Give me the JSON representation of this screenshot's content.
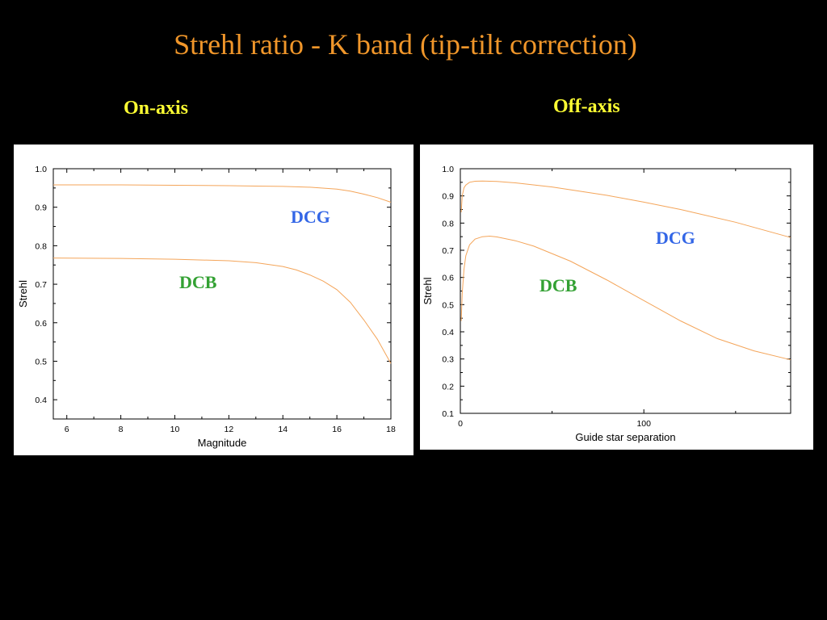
{
  "slide": {
    "title": "Strehl ratio - K band (tip-tilt correction)",
    "subheads": {
      "left": "On-axis",
      "right": "Off-axis"
    }
  },
  "colors": {
    "background": "#000000",
    "title": "#f0962a",
    "subhead": "#ffff33",
    "curve": "#f4a55a",
    "dcg_label": "#3366e6",
    "dcb_label": "#33a133"
  },
  "chart_data": [
    {
      "type": "line",
      "xlabel": "Magnitude",
      "ylabel": "Strehl",
      "xlim": [
        5.5,
        18
      ],
      "ylim": [
        0.35,
        1.0
      ],
      "xticks": [
        6,
        8,
        10,
        12,
        14,
        16,
        18
      ],
      "yticks": [
        0.4,
        0.5,
        0.6,
        0.7,
        0.8,
        0.9,
        1.0
      ],
      "xtick_labels": [
        "6",
        "8",
        "10",
        "12",
        "14",
        "16",
        "18"
      ],
      "ytick_labels": [
        "0.4",
        "0.5",
        "0.6",
        "0.7",
        "0.8",
        "0.9",
        "1.0"
      ],
      "grid": false,
      "series": [
        {
          "name": "DCG",
          "x": [
            5.5,
            8,
            10,
            12,
            13,
            14,
            15,
            16,
            16.5,
            17,
            17.5,
            18
          ],
          "y": [
            0.958,
            0.958,
            0.957,
            0.956,
            0.955,
            0.954,
            0.952,
            0.947,
            0.942,
            0.934,
            0.925,
            0.913
          ]
        },
        {
          "name": "DCB",
          "x": [
            5.5,
            8,
            10,
            12,
            13,
            14,
            14.5,
            15,
            15.5,
            16,
            16.5,
            17,
            17.5,
            18
          ],
          "y": [
            0.768,
            0.767,
            0.765,
            0.761,
            0.756,
            0.746,
            0.737,
            0.724,
            0.708,
            0.686,
            0.653,
            0.607,
            0.557,
            0.494
          ]
        }
      ]
    },
    {
      "type": "line",
      "xlabel": "Guide star separation",
      "ylabel": "Strehl",
      "xlim": [
        0,
        180
      ],
      "ylim": [
        0.1,
        1.0
      ],
      "xticks": [
        0,
        100
      ],
      "yticks": [
        0.1,
        0.2,
        0.3,
        0.4,
        0.5,
        0.6,
        0.7,
        0.8,
        0.9,
        1.0
      ],
      "xtick_labels": [
        "0",
        "100"
      ],
      "ytick_labels": [
        "0.1",
        "0.2",
        "0.3",
        "0.4",
        "0.5",
        "0.6",
        "0.7",
        "0.8",
        "0.9",
        "1.0"
      ],
      "grid": false,
      "series": [
        {
          "name": "DCG",
          "x": [
            0.5,
            1,
            2,
            3,
            5,
            8,
            12,
            20,
            30,
            50,
            80,
            100,
            120,
            150,
            180
          ],
          "y": [
            0.84,
            0.9,
            0.93,
            0.94,
            0.95,
            0.954,
            0.955,
            0.953,
            0.948,
            0.933,
            0.902,
            0.877,
            0.85,
            0.803,
            0.747
          ]
        },
        {
          "name": "DCB",
          "x": [
            0.5,
            1,
            2,
            3,
            5,
            8,
            12,
            16,
            20,
            30,
            40,
            60,
            80,
            100,
            120,
            140,
            160,
            180
          ],
          "y": [
            0.44,
            0.54,
            0.63,
            0.68,
            0.72,
            0.741,
            0.75,
            0.752,
            0.749,
            0.735,
            0.715,
            0.66,
            0.59,
            0.515,
            0.44,
            0.375,
            0.33,
            0.297
          ]
        }
      ]
    }
  ]
}
